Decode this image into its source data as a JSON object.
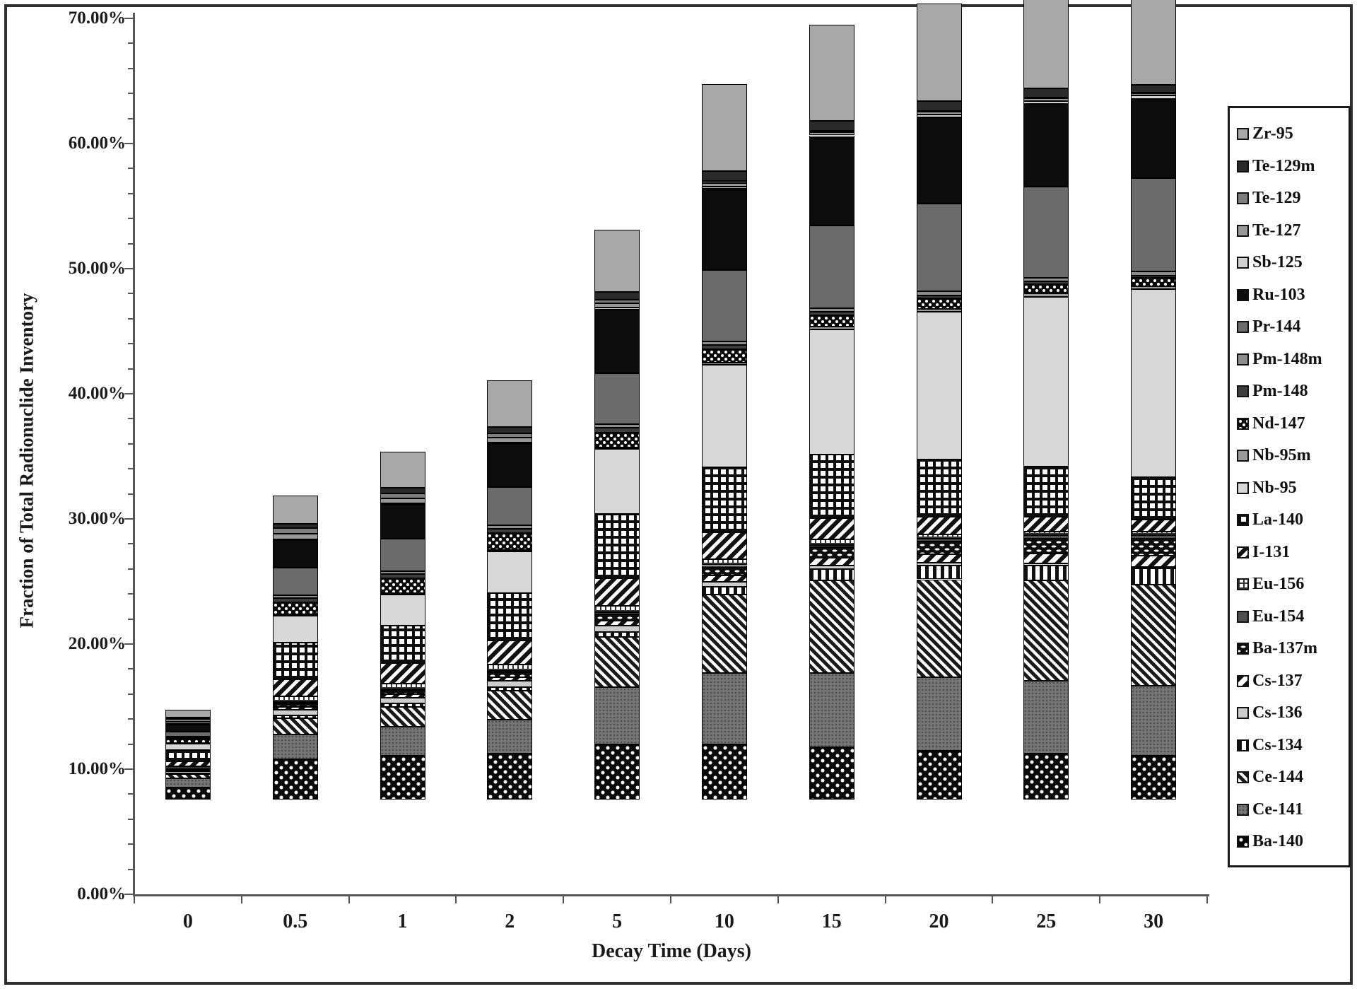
{
  "palette": {
    "ink": "#1a1a1a",
    "axis": "#555555",
    "background": "#ffffff"
  },
  "chart_data": {
    "type": "bar",
    "stacked": true,
    "title": "",
    "xlabel": "Decay Time (Days)",
    "ylabel": "Fraction of Total Radionuclide Inventory",
    "categories": [
      "0",
      "0.5",
      "1",
      "2",
      "5",
      "10",
      "15",
      "20",
      "25",
      "30"
    ],
    "y_tick_labels": [
      "0.00%",
      "10.00%",
      "20.00%",
      "30.00%",
      "40.00%",
      "50.00%",
      "60.00%",
      "70.00%"
    ],
    "ylim": [
      0,
      70
    ],
    "y_major_step": 10,
    "y_minor_step": 2,
    "grid": false,
    "legend_position": "right",
    "units": "percent of total radionuclide inventory",
    "bar_totals_pct": [
      7.2,
      24.3,
      27.8,
      33.5,
      45.6,
      57.2,
      61.9,
      63.6,
      64.4,
      64.5
    ],
    "series": [
      {
        "name": "Zr-95",
        "pattern": "zr95",
        "swatch": "medium-gray",
        "values": [
          0.65,
          2.25,
          2.9,
          3.75,
          5.0,
          7.0,
          7.7,
          7.8,
          7.6,
          7.4
        ]
      },
      {
        "name": "Te-129m",
        "pattern": "te129m",
        "swatch": "very-dark-gray",
        "values": [
          0.13,
          0.38,
          0.42,
          0.48,
          0.62,
          0.76,
          0.8,
          0.78,
          0.72,
          0.65
        ]
      },
      {
        "name": "Te-129",
        "pattern": "te129",
        "swatch": "gray",
        "values": [
          0.2,
          0.45,
          0.4,
          0.35,
          0.25,
          0.15,
          0.1,
          0.08,
          0.06,
          0.05
        ]
      },
      {
        "name": "Te-127",
        "pattern": "te127",
        "swatch": "gray",
        "values": [
          0.18,
          0.42,
          0.42,
          0.4,
          0.35,
          0.3,
          0.26,
          0.22,
          0.2,
          0.18
        ]
      },
      {
        "name": "Sb-125",
        "pattern": "sb125",
        "swatch": "light-gray",
        "values": [
          0.04,
          0.1,
          0.1,
          0.12,
          0.15,
          0.18,
          0.2,
          0.22,
          0.24,
          0.26
        ]
      },
      {
        "name": "Ru-103",
        "pattern": "ru103",
        "swatch": "black",
        "values": [
          0.6,
          2.2,
          2.7,
          3.4,
          5.1,
          6.5,
          7.0,
          6.9,
          6.6,
          6.3
        ]
      },
      {
        "name": "Pr-144",
        "pattern": "pr144",
        "swatch": "dark-gray",
        "values": [
          0.35,
          2.2,
          2.6,
          3.1,
          4.1,
          5.7,
          6.6,
          7.0,
          7.3,
          7.5
        ]
      },
      {
        "name": "Pm-148m",
        "pattern": "pm148m",
        "swatch": "gray",
        "values": [
          0.08,
          0.22,
          0.24,
          0.26,
          0.28,
          0.3,
          0.3,
          0.3,
          0.3,
          0.3
        ]
      },
      {
        "name": "Pm-148",
        "pattern": "pm148",
        "swatch": "dark-gray",
        "values": [
          0.12,
          0.32,
          0.33,
          0.35,
          0.35,
          0.3,
          0.26,
          0.24,
          0.22,
          0.2
        ]
      },
      {
        "name": "Nd-147",
        "pattern": "nd147",
        "swatch": "black-white-checker",
        "values": [
          0.35,
          1.0,
          1.2,
          1.35,
          1.2,
          1.1,
          0.95,
          0.85,
          0.75,
          0.65
        ]
      },
      {
        "name": "Nb-95m",
        "pattern": "nb95m",
        "swatch": "gray",
        "values": [
          0.04,
          0.1,
          0.1,
          0.12,
          0.15,
          0.18,
          0.2,
          0.22,
          0.24,
          0.26
        ]
      },
      {
        "name": "Nb-95",
        "pattern": "nb95",
        "swatch": "very-light-gray",
        "values": [
          0.5,
          2.1,
          2.5,
          3.3,
          5.2,
          8.2,
          10.0,
          11.8,
          13.6,
          15.0
        ]
      },
      {
        "name": "La-140",
        "pattern": "la140",
        "swatch": "waffle-grid",
        "values": [
          0.9,
          2.95,
          3.0,
          3.8,
          5.1,
          5.2,
          5.1,
          4.6,
          4.0,
          3.4
        ]
      },
      {
        "name": "I-131",
        "pattern": "i131",
        "swatch": "diagonal-hatch",
        "values": [
          0.42,
          1.35,
          1.6,
          1.9,
          2.2,
          2.1,
          1.7,
          1.4,
          1.15,
          0.95
        ]
      },
      {
        "name": "Eu-156",
        "pattern": "eu156",
        "swatch": "fine-grid",
        "values": [
          0.2,
          0.5,
          0.48,
          0.55,
          0.55,
          0.5,
          0.42,
          0.36,
          0.32,
          0.28
        ]
      },
      {
        "name": "Eu-154",
        "pattern": "eu154",
        "swatch": "dark-gray",
        "values": [
          0.04,
          0.1,
          0.1,
          0.12,
          0.15,
          0.18,
          0.2,
          0.24,
          0.27,
          0.3
        ]
      },
      {
        "name": "Ba-137m",
        "pattern": "ba137m",
        "swatch": "zigzag-dashes",
        "values": [
          0.08,
          0.25,
          0.3,
          0.35,
          0.5,
          0.65,
          0.85,
          1.0,
          1.2,
          1.35
        ]
      },
      {
        "name": "Cs-137",
        "pattern": "cs137",
        "swatch": "bold-diagonal",
        "values": [
          0.08,
          0.25,
          0.28,
          0.3,
          0.4,
          0.5,
          0.6,
          0.7,
          0.8,
          0.9
        ]
      },
      {
        "name": "Cs-136",
        "pattern": "cs136",
        "swatch": "light-gray",
        "values": [
          0.13,
          0.42,
          0.45,
          0.5,
          0.5,
          0.4,
          0.3,
          0.2,
          0.15,
          0.1
        ]
      },
      {
        "name": "Cs-134",
        "pattern": "cs134",
        "swatch": "vertical-stripes",
        "values": [
          0.08,
          0.25,
          0.28,
          0.3,
          0.4,
          0.6,
          0.9,
          1.1,
          1.2,
          1.3
        ]
      },
      {
        "name": "Ce-144",
        "pattern": "ce144",
        "swatch": "thin-diagonal",
        "values": [
          0.33,
          1.3,
          1.6,
          2.3,
          4.0,
          6.3,
          7.4,
          7.8,
          8.0,
          8.1
        ]
      },
      {
        "name": "Ce-141",
        "pattern": "ce141",
        "swatch": "dotted-gray",
        "values": [
          0.75,
          2.0,
          2.3,
          2.7,
          4.6,
          5.7,
          5.9,
          5.9,
          5.8,
          5.6
        ]
      },
      {
        "name": "Ba-140",
        "pattern": "ba140",
        "swatch": "black-white-dots",
        "values": [
          0.95,
          3.2,
          3.5,
          3.7,
          4.4,
          4.4,
          4.2,
          3.9,
          3.7,
          3.5
        ]
      }
    ]
  }
}
